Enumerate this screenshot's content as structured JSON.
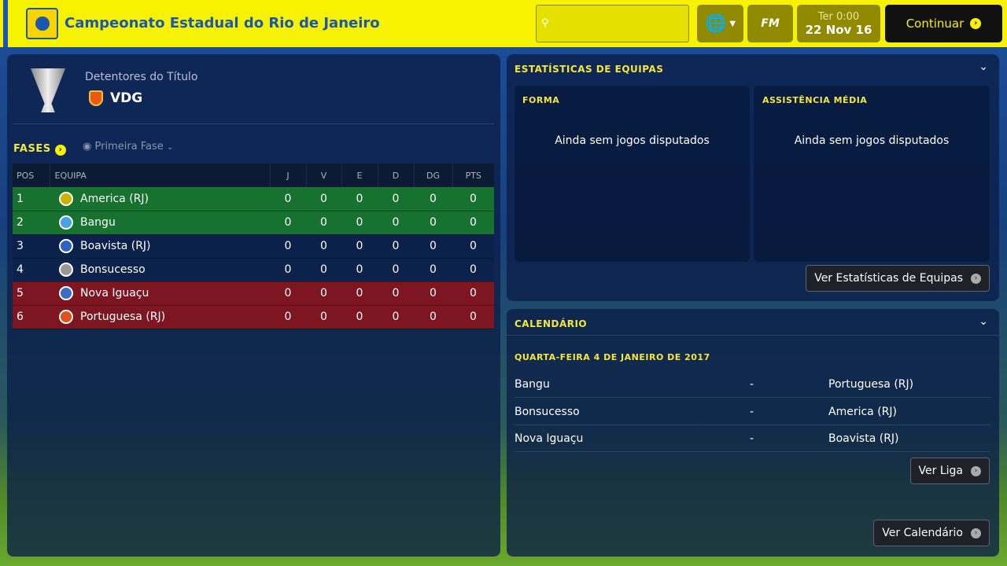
{
  "header": {
    "title": "Campeonato Estadual do Rio de Janeiro",
    "search_placeholder": "",
    "date_day": "Ter 0:00",
    "date": "22 Nov 16",
    "fm_label": "FM",
    "continue_label": "Continuar"
  },
  "holders": {
    "label": "Detentores do Título",
    "team": "VDG"
  },
  "stages": {
    "label": "FASES",
    "selected": "Primeira Fase"
  },
  "table": {
    "columns": [
      "POS",
      "EQUIPA",
      "J",
      "V",
      "E",
      "D",
      "DG",
      "PTS"
    ],
    "rows": [
      {
        "pos": "1",
        "team": "America (RJ)",
        "j": "0",
        "v": "0",
        "e": "0",
        "d": "0",
        "dg": "0",
        "pts": "0",
        "zone": "promotion",
        "color": "#c8b400"
      },
      {
        "pos": "2",
        "team": "Bangu",
        "j": "0",
        "v": "0",
        "e": "0",
        "d": "0",
        "dg": "0",
        "pts": "0",
        "zone": "promotion",
        "color": "#4aa3e0"
      },
      {
        "pos": "3",
        "team": "Boavista (RJ)",
        "j": "0",
        "v": "0",
        "e": "0",
        "d": "0",
        "dg": "0",
        "pts": "0",
        "zone": "none",
        "color": "#2e63c4"
      },
      {
        "pos": "4",
        "team": "Bonsucesso",
        "j": "0",
        "v": "0",
        "e": "0",
        "d": "0",
        "dg": "0",
        "pts": "0",
        "zone": "none",
        "color": "#999999"
      },
      {
        "pos": "5",
        "team": "Nova Iguaçu",
        "j": "0",
        "v": "0",
        "e": "0",
        "d": "0",
        "dg": "0",
        "pts": "0",
        "zone": "relegation",
        "color": "#3a6ec4"
      },
      {
        "pos": "6",
        "team": "Portuguesa (RJ)",
        "j": "0",
        "v": "0",
        "e": "0",
        "d": "0",
        "dg": "0",
        "pts": "0",
        "zone": "relegation",
        "color": "#e0501a"
      }
    ]
  },
  "team_stats": {
    "title": "ESTATÍSTICAS DE EQUIPAS",
    "form_title": "FORMA",
    "form_empty": "Ainda sem jogos disputados",
    "attendance_title": "ASSISTÊNCIA MÉDIA",
    "attendance_empty": "Ainda sem jogos disputados",
    "button": "Ver Estatísticas de Equipas"
  },
  "calendar": {
    "title": "CALENDÁRIO",
    "date": "QUARTA-FEIRA 4 DE JANEIRO DE 2017",
    "fixtures": [
      {
        "home": "Bangu",
        "sep": "-",
        "away": "Portuguesa (RJ)"
      },
      {
        "home": "Bonsucesso",
        "sep": "-",
        "away": "America (RJ)"
      },
      {
        "home": "Nova Iguaçu",
        "sep": "-",
        "away": "Boavista (RJ)"
      }
    ],
    "league_button": "Ver Liga",
    "calendar_button": "Ver Calendário"
  }
}
